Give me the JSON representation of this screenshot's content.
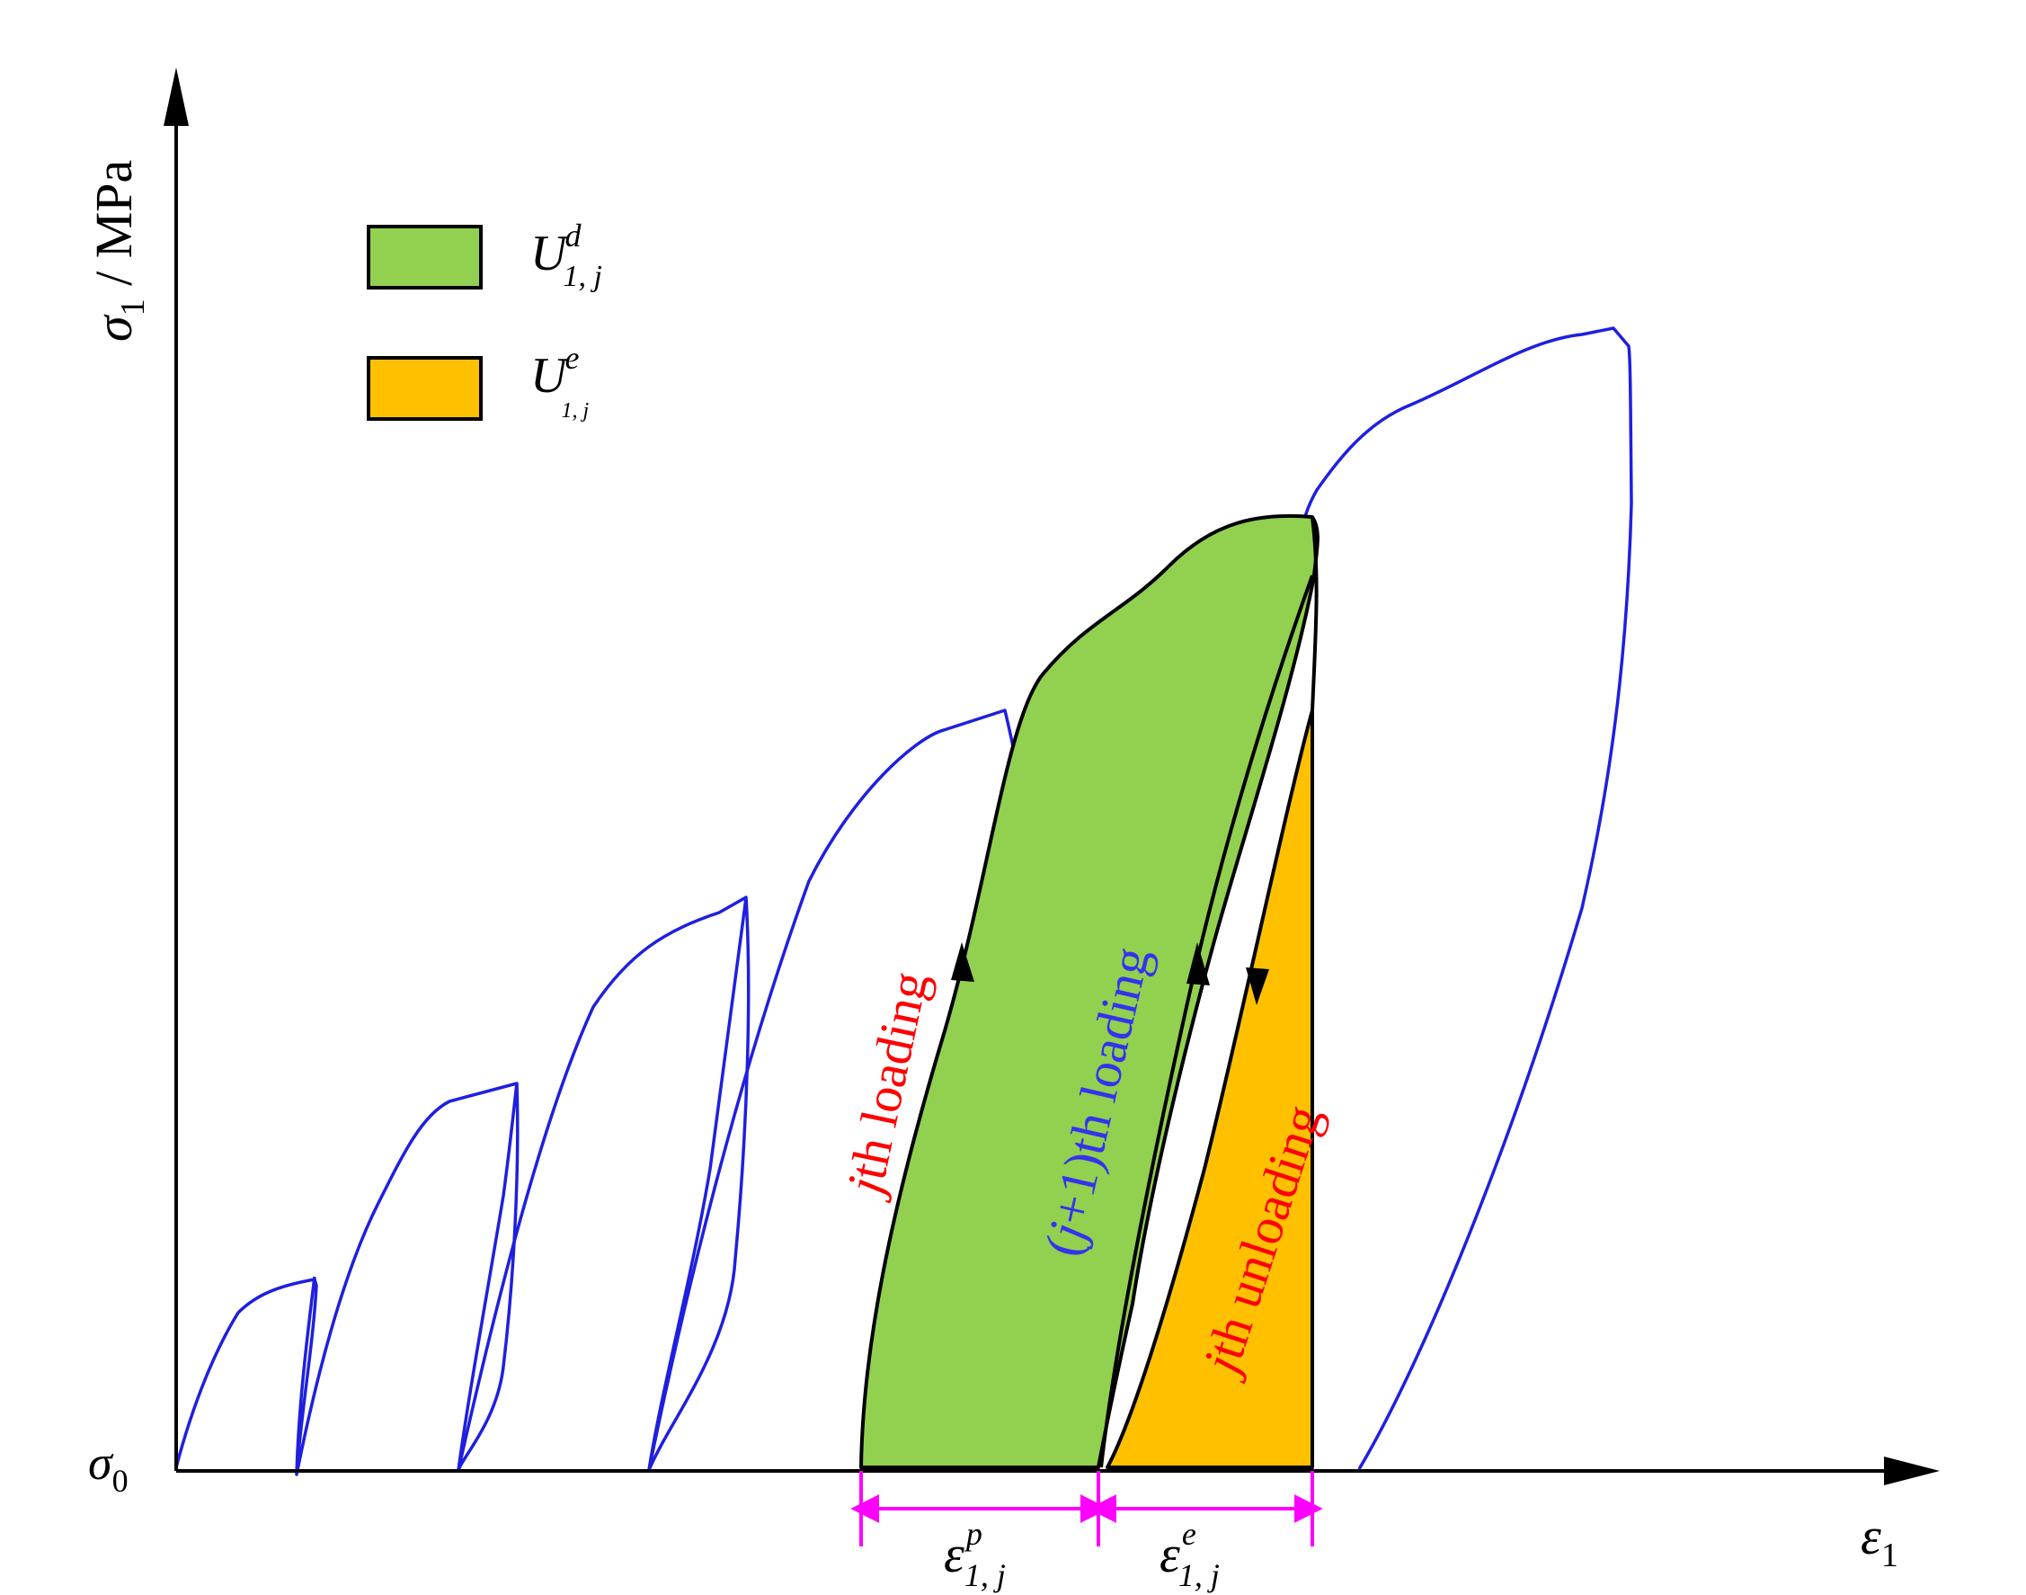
{
  "axes": {
    "y_label_symbol": "σ",
    "y_label_subscript": "1",
    "y_label_unit": " / MPa",
    "x_label_symbol": "ε",
    "x_label_subscript": "1",
    "origin_symbol": "σ",
    "origin_subscript": "0"
  },
  "legend": {
    "items": [
      {
        "symbol": "U",
        "sub": "1, j",
        "sup": "d",
        "color": "#92d050"
      },
      {
        "symbol": "U",
        "sub": "1, j",
        "sup": "e",
        "color": "#ffc000"
      }
    ]
  },
  "annotations": {
    "jth_loading_j": "j",
    "jth_loading_rest": "th loading",
    "j1_loading_open": "(",
    "j1_loading_j": "j",
    "j1_loading_rest": "+1)th loading",
    "jth_unloading_j": "j",
    "jth_unloading_rest": "th unloading"
  },
  "strains": {
    "plastic": {
      "symbol": "ε",
      "sub": "1, j",
      "sup": "p"
    },
    "elastic": {
      "symbol": "ε",
      "sub": "1, j",
      "sup": "e"
    }
  },
  "colors": {
    "curve": "#1f1fe0",
    "dissipated_fill": "#92d050",
    "elastic_fill": "#ffc000",
    "dimension": "#ff00ff",
    "label_red": "#ff0000",
    "label_blue": "#3333ee",
    "axis": "#000000"
  }
}
